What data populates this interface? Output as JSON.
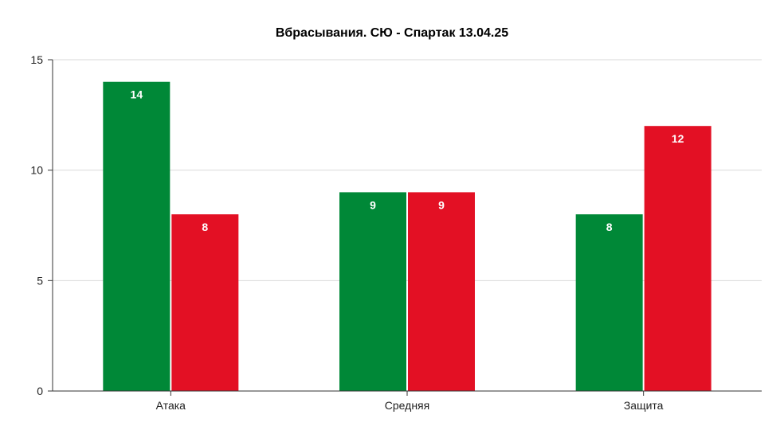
{
  "chart_data": {
    "type": "bar",
    "title": "Вбрасывания. СЮ - Спартак 13.04.25",
    "xlabel": "",
    "ylabel": "",
    "categories": [
      "Атака",
      "Средняя",
      "Защита"
    ],
    "series": [
      {
        "values": [
          14,
          9,
          8
        ],
        "color": "#008837"
      },
      {
        "values": [
          8,
          9,
          12
        ],
        "color": "#e31024"
      }
    ],
    "ylim": [
      0,
      15
    ],
    "yticks": [
      0,
      5,
      10,
      15
    ],
    "grid": true,
    "legend": "none"
  }
}
